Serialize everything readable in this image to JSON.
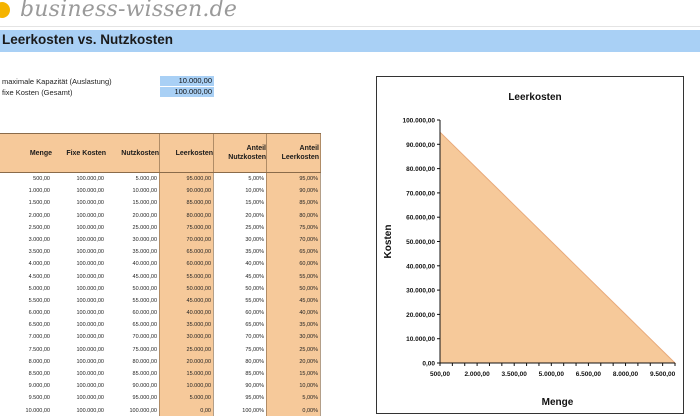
{
  "brand": {
    "logo_text": "business-wissen.de"
  },
  "sheet": {
    "title": "Leerkosten vs. Nutzkosten"
  },
  "params": [
    {
      "label": "maximale Kapazität (Auslastung)",
      "value": "10.000,00"
    },
    {
      "label": "fixe Kosten (Gesamt)",
      "value": "100.000,00"
    }
  ],
  "table": {
    "headers": [
      {
        "line1": "Menge",
        "line2": ""
      },
      {
        "line1": "Fixe Kosten",
        "line2": ""
      },
      {
        "line1": "Nutzkosten",
        "line2": ""
      },
      {
        "line1": "Leerkosten",
        "line2": ""
      },
      {
        "line1": "Anteil",
        "line2": "Nutzkosten"
      },
      {
        "line1": "Anteil",
        "line2": "Leerkosten"
      }
    ],
    "rows": [
      [
        "500,00",
        "100.000,00",
        "5.000,00",
        "95.000,00",
        "5,00%",
        "95,00%"
      ],
      [
        "1.000,00",
        "100.000,00",
        "10.000,00",
        "90.000,00",
        "10,00%",
        "90,00%"
      ],
      [
        "1.500,00",
        "100.000,00",
        "15.000,00",
        "85.000,00",
        "15,00%",
        "85,00%"
      ],
      [
        "2.000,00",
        "100.000,00",
        "20.000,00",
        "80.000,00",
        "20,00%",
        "80,00%"
      ],
      [
        "2.500,00",
        "100.000,00",
        "25.000,00",
        "75.000,00",
        "25,00%",
        "75,00%"
      ],
      [
        "3.000,00",
        "100.000,00",
        "30.000,00",
        "70.000,00",
        "30,00%",
        "70,00%"
      ],
      [
        "3.500,00",
        "100.000,00",
        "35.000,00",
        "65.000,00",
        "35,00%",
        "65,00%"
      ],
      [
        "4.000,00",
        "100.000,00",
        "40.000,00",
        "60.000,00",
        "40,00%",
        "60,00%"
      ],
      [
        "4.500,00",
        "100.000,00",
        "45.000,00",
        "55.000,00",
        "45,00%",
        "55,00%"
      ],
      [
        "5.000,00",
        "100.000,00",
        "50.000,00",
        "50.000,00",
        "50,00%",
        "50,00%"
      ],
      [
        "5.500,00",
        "100.000,00",
        "55.000,00",
        "45.000,00",
        "55,00%",
        "45,00%"
      ],
      [
        "6.000,00",
        "100.000,00",
        "60.000,00",
        "40.000,00",
        "60,00%",
        "40,00%"
      ],
      [
        "6.500,00",
        "100.000,00",
        "65.000,00",
        "35.000,00",
        "65,00%",
        "35,00%"
      ],
      [
        "7.000,00",
        "100.000,00",
        "70.000,00",
        "30.000,00",
        "70,00%",
        "30,00%"
      ],
      [
        "7.500,00",
        "100.000,00",
        "75.000,00",
        "25.000,00",
        "75,00%",
        "25,00%"
      ],
      [
        "8.000,00",
        "100.000,00",
        "80.000,00",
        "20.000,00",
        "80,00%",
        "20,00%"
      ],
      [
        "8.500,00",
        "100.000,00",
        "85.000,00",
        "15.000,00",
        "85,00%",
        "15,00%"
      ],
      [
        "9.000,00",
        "100.000,00",
        "90.000,00",
        "10.000,00",
        "90,00%",
        "10,00%"
      ],
      [
        "9.500,00",
        "100.000,00",
        "95.000,00",
        "5.000,00",
        "95,00%",
        "5,00%"
      ],
      [
        "10.000,00",
        "100.000,00",
        "100.000,00",
        "0,00",
        "100,00%",
        "0,00%"
      ]
    ]
  },
  "colors": {
    "header_blue": "#a9d0f5",
    "accent_orange": "#f6c99a",
    "logo_dot": "#f5b400"
  },
  "chart_data": {
    "type": "area",
    "title": "Leerkosten",
    "xlabel": "Menge",
    "ylabel": "Kosten",
    "x": [
      500,
      1000,
      1500,
      2000,
      2500,
      3000,
      3500,
      4000,
      4500,
      5000,
      5500,
      6000,
      6500,
      7000,
      7500,
      8000,
      8500,
      9000,
      9500,
      10000
    ],
    "values": [
      95000,
      90000,
      85000,
      80000,
      75000,
      70000,
      65000,
      60000,
      55000,
      50000,
      45000,
      40000,
      35000,
      30000,
      25000,
      20000,
      15000,
      10000,
      5000,
      0
    ],
    "ylim": [
      0,
      100000
    ],
    "y_ticks": [
      "0,00",
      "10.000,00",
      "20.000,00",
      "30.000,00",
      "40.000,00",
      "50.000,00",
      "60.000,00",
      "70.000,00",
      "80.000,00",
      "90.000,00",
      "100.000,00"
    ],
    "x_ticks": [
      "500,00",
      "2.000,00",
      "3.500,00",
      "5.000,00",
      "6.500,00",
      "8.000,00",
      "9.500,00"
    ],
    "color": "#f6c99a",
    "legend": "none"
  }
}
